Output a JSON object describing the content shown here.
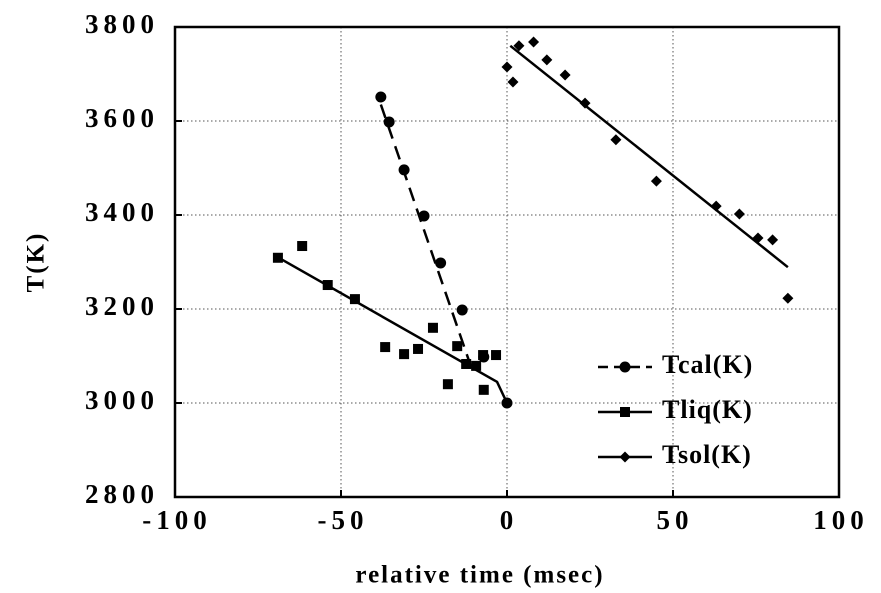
{
  "chart_data": {
    "type": "scatter",
    "x_label": "relative time (msec)",
    "y_label": "T(K)",
    "xlim": [
      -100,
      100
    ],
    "xticks": [
      -100,
      -50,
      0,
      50,
      100
    ],
    "ylim": [
      2800,
      3800
    ],
    "yticks": [
      2800,
      3000,
      3200,
      3400,
      3600,
      3800
    ],
    "grid": true,
    "legend": "lower right",
    "series": [
      {
        "name": "Tcal(K)",
        "color": "#000000",
        "marker": "circle",
        "dash": true,
        "x": [
          -38,
          -35.5,
          -31,
          -25,
          -20,
          -13.5,
          -7,
          0
        ],
        "values": [
          3651,
          3598,
          3496,
          3398,
          3298,
          3198,
          3098,
          3000
        ],
        "fit": {
          "x": [
            -38,
            -10
          ],
          "values": [
            3635,
            3060
          ]
        }
      },
      {
        "name": "Tliq(K)",
        "color": "#000000",
        "marker": "square",
        "dash": false,
        "x": [
          -69,
          -61.7,
          -54,
          -45.8,
          -36.7,
          -31,
          -26.8,
          -22.3,
          -17.8,
          -15,
          -12.3,
          -9.3,
          -7,
          -7.2,
          -3.3
        ],
        "values": [
          3309,
          3334,
          3251,
          3221,
          3119,
          3104,
          3115,
          3160,
          3040,
          3121,
          3083,
          3079,
          3028,
          3102,
          3102
        ],
        "fit": {
          "x": [
            -69,
            -3,
            0
          ],
          "values": [
            3310,
            3045,
            3000
          ]
        }
      },
      {
        "name": "Tsol(K)",
        "color": "#000000",
        "marker": "diamond",
        "dash": false,
        "x": [
          0,
          1.8,
          3.6,
          8,
          12,
          17.5,
          23.5,
          32.8,
          45,
          63,
          70,
          75.6,
          80,
          84.6
        ],
        "values": [
          3715,
          3683,
          3760,
          3768,
          3730,
          3698,
          3638,
          3560,
          3472,
          3419,
          3402,
          3351,
          3347,
          3223
        ],
        "fit": {
          "x": [
            1,
            84.6
          ],
          "values": [
            3760,
            3289
          ]
        }
      }
    ]
  }
}
